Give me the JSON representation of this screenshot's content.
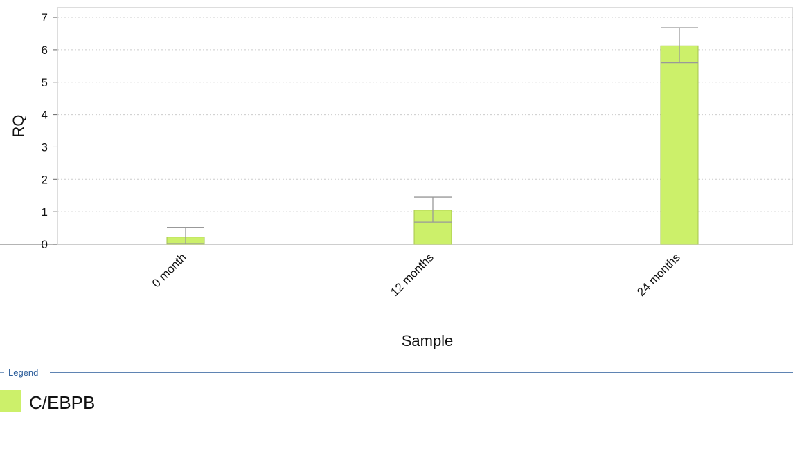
{
  "chart_data": {
    "type": "bar",
    "categories": [
      "0 month",
      "12 months",
      "24 months"
    ],
    "series": [
      {
        "name": "C/EBPB",
        "color": "#ccf06a",
        "values": [
          0.22,
          1.05,
          6.12
        ],
        "error_low": [
          0.02,
          0.68,
          5.6
        ],
        "error_high": [
          0.52,
          1.45,
          6.68
        ]
      }
    ],
    "xlabel": "Sample",
    "ylabel": "RQ",
    "ylim": [
      0,
      7.3
    ],
    "yticks": [
      0,
      1,
      2,
      3,
      4,
      5,
      6,
      7
    ],
    "grid": true,
    "legend": {
      "title": "Legend",
      "placement": "bottom-left"
    }
  }
}
